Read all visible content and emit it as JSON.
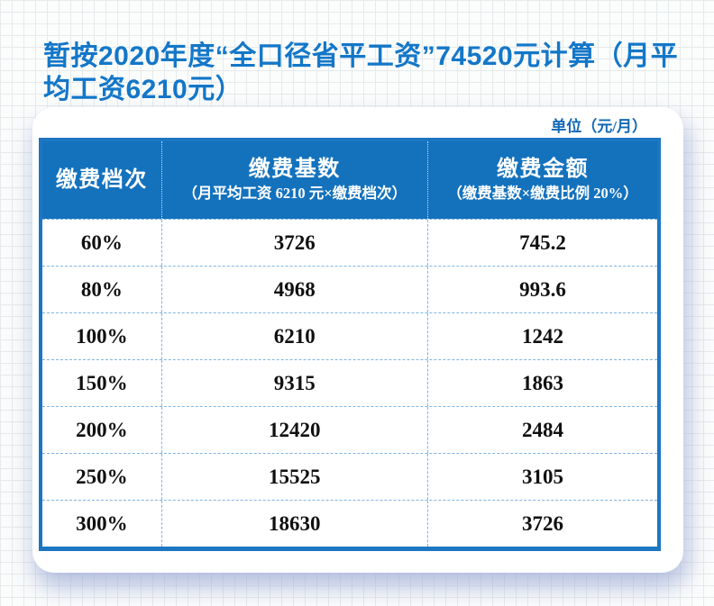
{
  "title": {
    "line1": "暂按2020年度“全口径省平工资”74520元计算（月平",
    "line2": "均工资6210元）"
  },
  "unit_label": "单位（元/月）",
  "table": {
    "columns": [
      {
        "title": "缴费档次",
        "subtitle": ""
      },
      {
        "title": "缴费基数",
        "subtitle": "（月平均工资 6210 元×缴费档次）"
      },
      {
        "title": "缴费金额",
        "subtitle": "（缴费基数×缴费比例 20%）"
      }
    ],
    "rows": [
      {
        "grade": "60%",
        "base": "3726",
        "amount": "745.2"
      },
      {
        "grade": "80%",
        "base": "4968",
        "amount": "993.6"
      },
      {
        "grade": "100%",
        "base": "6210",
        "amount": "1242"
      },
      {
        "grade": "150%",
        "base": "9315",
        "amount": "1863"
      },
      {
        "grade": "200%",
        "base": "12420",
        "amount": "2484"
      },
      {
        "grade": "250%",
        "base": "15525",
        "amount": "3105"
      },
      {
        "grade": "300%",
        "base": "18630",
        "amount": "3726"
      }
    ]
  },
  "colors": {
    "header_background": "#1472bd",
    "table_border": "#1c76c2",
    "dashed_divider": "#7db4e4",
    "title_text": "#1377c8",
    "unit_text": "#1268b4",
    "cell_text": "#101010",
    "grid_line": "#e7eaeb",
    "card_background": "#ffffff"
  }
}
